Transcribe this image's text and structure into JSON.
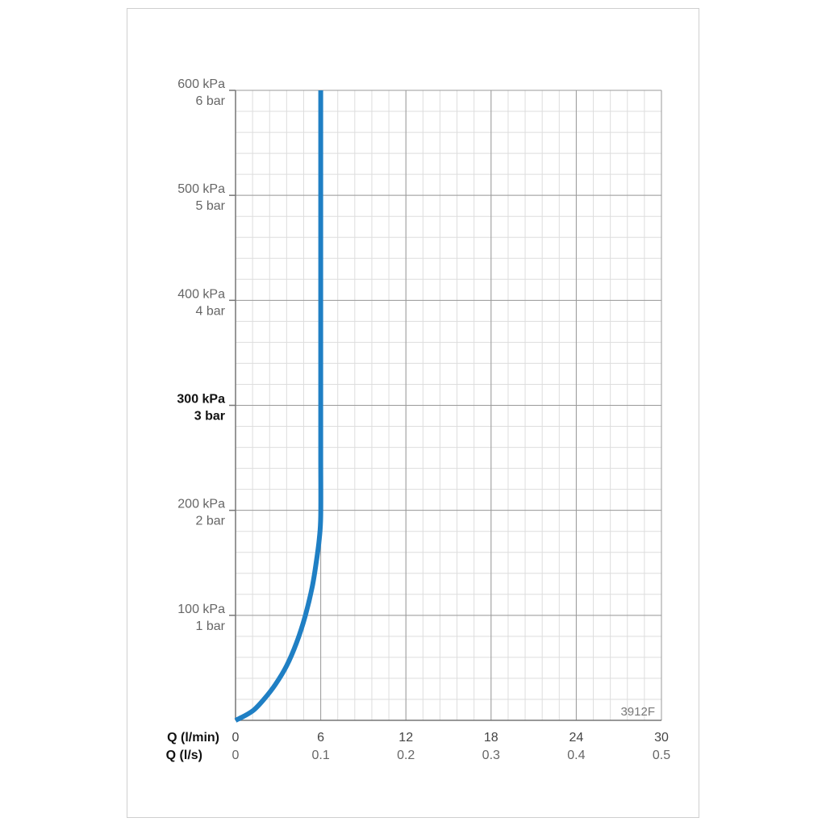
{
  "chart_data": {
    "type": "line",
    "code_label": "3912F",
    "x_axis": {
      "primary_label": "Q (l/min)",
      "secondary_label": "Q (l/s)",
      "range": [
        0,
        30
      ],
      "ticks": [
        0,
        6,
        12,
        18,
        24,
        30
      ],
      "tick_labels": [
        "0",
        "6",
        "12",
        "18",
        "24",
        "30"
      ],
      "secondary_tick_labels": [
        "0",
        "0.1",
        "0.2",
        "0.3",
        "0.4",
        "0.5"
      ]
    },
    "y_axis": {
      "range": [
        0,
        600
      ],
      "unit": "kPa",
      "ticks": [
        {
          "value": 100,
          "kpa": "100 kPa",
          "bar": "1 bar",
          "bold": false
        },
        {
          "value": 200,
          "kpa": "200 kPa",
          "bar": "2 bar",
          "bold": false
        },
        {
          "value": 300,
          "kpa": "300 kPa",
          "bar": "3 bar",
          "bold": true
        },
        {
          "value": 400,
          "kpa": "400 kPa",
          "bar": "4 bar",
          "bold": false
        },
        {
          "value": 500,
          "kpa": "500 kPa",
          "bar": "5 bar",
          "bold": false
        },
        {
          "value": 600,
          "kpa": "600 kPa",
          "bar": "6 bar",
          "bold": false
        }
      ]
    },
    "grid": true,
    "series": [
      {
        "color": "#1f7fc4",
        "points": [
          [
            0.0,
            0
          ],
          [
            0.6,
            4
          ],
          [
            1.3,
            10
          ],
          [
            2.0,
            20
          ],
          [
            2.8,
            34
          ],
          [
            3.6,
            52
          ],
          [
            4.3,
            74
          ],
          [
            4.9,
            99
          ],
          [
            5.4,
            127
          ],
          [
            5.7,
            152
          ],
          [
            5.9,
            173
          ],
          [
            6.0,
            195
          ],
          [
            6.0,
            250
          ],
          [
            6.0,
            300
          ],
          [
            6.0,
            400
          ],
          [
            6.0,
            500
          ],
          [
            6.0,
            600
          ]
        ]
      }
    ]
  },
  "colors": {
    "major_grid": "#9a9a9a",
    "minor_grid": "#dddddd",
    "label": "#666666",
    "bold_label": "#111111",
    "curve": "#1f7fc4"
  }
}
